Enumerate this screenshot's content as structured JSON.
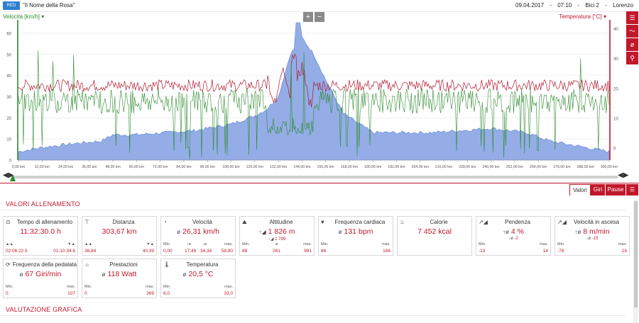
{
  "header": {
    "logo": "RED",
    "title": "\"Il Nome della Rosa\"",
    "date": "09.04.2017",
    "dash1": "-",
    "time": "07:10",
    "dash2": "-",
    "bike": "Bici 2",
    "dash3": "-",
    "user": "Lorenzo"
  },
  "chart": {
    "left_label": "Velocità [km/h]",
    "right_label": "Temperatura [°C]",
    "zoom_in": "+",
    "zoom_out": "−",
    "left_ticks": [
      "0",
      "10",
      "20",
      "30",
      "40",
      "50",
      "60"
    ],
    "right_ticks": [
      "0",
      "10",
      "20",
      "30",
      "40"
    ],
    "x_ticks": [
      "0,00 km",
      "12,00 km",
      "24,00 km",
      "36,00 km",
      "48,00 km",
      "60,00 km",
      "72,00 km",
      "84,00 km",
      "96,00 km",
      "108,00 km",
      "120,00 km",
      "132,00 km",
      "144,00 km",
      "156,00 km",
      "168,00 km",
      "180,00 km",
      "192,00 km",
      "204,00 km",
      "216,00 km",
      "228,00 km",
      "240,00 km",
      "252,00 km",
      "264,00 km",
      "276,00 km",
      "288,00 km",
      "300,00 km"
    ]
  },
  "side_icons": [
    "list-icon",
    "line-chart-icon",
    "diameter-icon",
    "map-pin-icon"
  ],
  "tabs": {
    "valori": "Valori",
    "giri": "Giri",
    "pause": "Pause"
  },
  "sections": {
    "valori": "VALORI ALLENAMENTO",
    "grafica": "VALUTAZIONE GRAFICA"
  },
  "cards": [
    {
      "icon": "⊙",
      "title": "Tempo di allenamento",
      "value": "11:32:30.0 h",
      "min_l": "▲▲",
      "min": "02:06:22.5",
      "max_l": "▼▲",
      "max": "01:10:34.6"
    },
    {
      "icon": "⊤",
      "title": "Distanza",
      "value": "303,67 km",
      "min_l": "▲▲",
      "min": "36,84",
      "max_l": "▼▲",
      "max": "40,39"
    },
    {
      "icon": "◔",
      "title": "Velocità",
      "value": "26,31 km/h",
      "pre": "ø",
      "min_l": "Min.",
      "min": "0,00",
      "mid1_l": "↑ø",
      "mid1": "17,49",
      "mid2_l": "↓ø",
      "mid2": "34,34",
      "max_l": "max.",
      "max": "58,80"
    },
    {
      "icon": "⛰",
      "title": "Altitudine",
      "value": "1 826 m",
      "pre": "↑◢",
      "extra_l": "↓◢",
      "extra": "1 799",
      "min_l": "Min.",
      "min": "88",
      "mid_l": "ø",
      "mid": "261",
      "max_l": "max.",
      "max": "981"
    },
    {
      "icon": "♥",
      "title": "Frequenza cardiaca",
      "value": "131 bpm",
      "pre": "ø",
      "min_l": "Min.",
      "min": "86",
      "max_l": "max.",
      "max": "166"
    },
    {
      "icon": "♨",
      "title": "Calorie",
      "value": "7 452 kcal"
    },
    {
      "icon": "↗◢",
      "title": "Pendenza",
      "value": "4 %",
      "pre": "↑ø",
      "extra_l": "↓ø",
      "extra": "-2",
      "min_l": "Min.",
      "min": "-13",
      "max_l": "max.",
      "max": "14"
    },
    {
      "icon": "↗◢",
      "title": "Velocità in ascesa",
      "value": "8 m/min",
      "pre": "↑ø",
      "extra_l": "↓ø",
      "extra": "-15",
      "min_l": "Min.",
      "min": "-78",
      "max_l": "max.",
      "max": "16"
    },
    {
      "icon": "⟳",
      "title": "Frequenza della pedalata",
      "value": "67 Giri/min",
      "pre": "ø",
      "min_l": "Min.",
      "min": "0",
      "max_l": "max.",
      "max": "107"
    },
    {
      "icon": "☼",
      "title": "Prestazioni",
      "value": "118 Watt",
      "pre": "ø",
      "min_l": "Min.",
      "min": "0",
      "max_l": "max.",
      "max": "369"
    },
    {
      "icon": "🌡",
      "title": "Temperatura",
      "value": "20,5 °C",
      "pre": "ø",
      "min_l": "Min.",
      "min": "6,0",
      "max_l": "max.",
      "max": "33,0"
    }
  ],
  "colors": {
    "accent": "#c0182b",
    "speed": "#2d8a2d",
    "temp": "#b01830",
    "alt_fill": "#8fa9e6"
  }
}
